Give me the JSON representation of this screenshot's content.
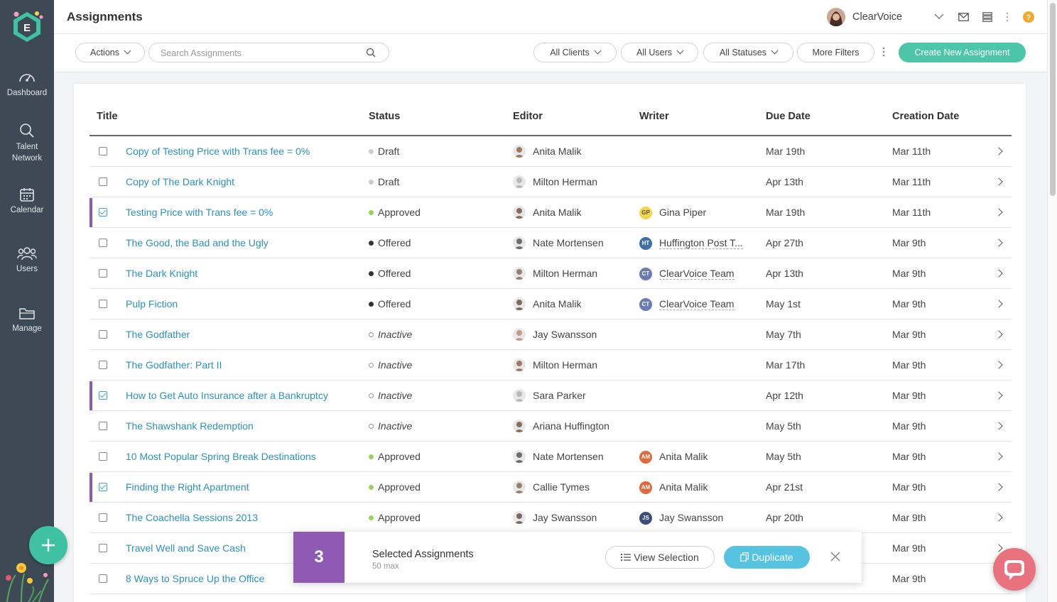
{
  "sidebar": {
    "nav": [
      {
        "label": "Dashboard",
        "icon": "speedometer-icon"
      },
      {
        "label": "Talent Network",
        "icon": "search-icon"
      },
      {
        "label": "Calendar",
        "icon": "calendar-icon"
      },
      {
        "label": "Users",
        "icon": "users-icon"
      },
      {
        "label": "Manage",
        "icon": "folder-icon"
      }
    ],
    "fab_icon": "plus-icon"
  },
  "header": {
    "title": "Assignments",
    "account_name": "ClearVoice"
  },
  "toolbar": {
    "actions_label": "Actions",
    "search_placeholder": "Search Assignments",
    "filters": [
      "All Clients",
      "All Users",
      "All Statuses"
    ],
    "more_filters_label": "More Filters",
    "create_label": "Create New Assignment"
  },
  "table": {
    "columns": [
      "Title",
      "Status",
      "Editor",
      "Writer",
      "Due Date",
      "Creation Date"
    ],
    "rows": [
      {
        "title": "Copy of Testing Price with Trans fee = 0%",
        "status": "Draft",
        "status_type": "draft",
        "editor": "Anita Malik",
        "writer": "",
        "writer_badge": "",
        "due": "Mar 19th",
        "created": "Mar 11th",
        "selected": false
      },
      {
        "title": "Copy of The Dark Knight",
        "status": "Draft",
        "status_type": "draft",
        "editor": "Milton Herman",
        "writer": "",
        "writer_badge": "",
        "due": "Apr 13th",
        "created": "Mar 11th",
        "selected": false
      },
      {
        "title": "Testing Price with Trans fee = 0%",
        "status": "Approved",
        "status_type": "approved",
        "editor": "Anita Malik",
        "writer": "Gina Piper",
        "writer_badge": "GP",
        "due": "Mar 19th",
        "created": "Mar 11th",
        "selected": true
      },
      {
        "title": "The Good, the Bad and the Ugly",
        "status": "Offered",
        "status_type": "offered",
        "editor": "Nate Mortensen",
        "writer": "Huffington Post T...",
        "writer_badge": "HT",
        "due": "Apr 27th",
        "created": "Mar 9th",
        "selected": false
      },
      {
        "title": "The Dark Knight",
        "status": "Offered",
        "status_type": "offered",
        "editor": "Milton Herman",
        "writer": "ClearVoice Team",
        "writer_badge": "CT",
        "due": "Apr 13th",
        "created": "Mar 9th",
        "selected": false
      },
      {
        "title": "Pulp Fiction",
        "status": "Offered",
        "status_type": "offered",
        "editor": "Anita Malik",
        "writer": "ClearVoice Team",
        "writer_badge": "CT",
        "due": "May 1st",
        "created": "Mar 9th",
        "selected": false
      },
      {
        "title": "The Godfather",
        "status": "Inactive",
        "status_type": "inactive",
        "editor": "Jay Swansson",
        "writer": "",
        "writer_badge": "",
        "due": "May 7th",
        "created": "Mar 9th",
        "selected": false
      },
      {
        "title": "The Godfather: Part II",
        "status": "Inactive",
        "status_type": "inactive",
        "editor": "Milton Herman",
        "writer": "",
        "writer_badge": "",
        "due": "Mar 17th",
        "created": "Mar 9th",
        "selected": false
      },
      {
        "title": "How to Get Auto Insurance after a Bankruptcy",
        "status": "Inactive",
        "status_type": "inactive",
        "editor": "Sara Parker",
        "writer": "",
        "writer_badge": "",
        "due": "Apr 12th",
        "created": "Mar 9th",
        "selected": true
      },
      {
        "title": "The Shawshank Redemption",
        "status": "Inactive",
        "status_type": "inactive",
        "editor": "Ariana Huffington",
        "writer": "",
        "writer_badge": "",
        "due": "May 5th",
        "created": "Mar 9th",
        "selected": false
      },
      {
        "title": "10 Most Popular Spring Break Destinations",
        "status": "Approved",
        "status_type": "approved",
        "editor": "Nate Mortensen",
        "writer": "Anita Malik",
        "writer_badge": "AM",
        "due": "May 5th",
        "created": "Mar 9th",
        "selected": false
      },
      {
        "title": "Finding the Right Apartment",
        "status": "Approved",
        "status_type": "approved",
        "editor": "Callie Tymes",
        "writer": "Anita Malik",
        "writer_badge": "AM",
        "due": "Apr 21st",
        "created": "Mar 9th",
        "selected": true
      },
      {
        "title": "The Coachella Sessions 2013",
        "status": "Approved",
        "status_type": "approved",
        "editor": "Jay Swansson",
        "writer": "Jay Swansson",
        "writer_badge": "JS",
        "due": "Apr 20th",
        "created": "Mar 9th",
        "selected": false
      },
      {
        "title": "Travel Well and Save Cash",
        "status": "",
        "status_type": "",
        "editor": "",
        "writer": "",
        "writer_badge": "",
        "due": "",
        "created": "Mar 9th",
        "selected": false
      },
      {
        "title": "8 Ways to Spruce Up the Office",
        "status": "",
        "status_type": "",
        "editor": "",
        "writer": "",
        "writer_badge": "",
        "due": "",
        "created": "Mar 9th",
        "selected": false
      }
    ]
  },
  "selection": {
    "count": "3",
    "title": "Selected Assignments",
    "subtitle": "50 max",
    "view_label": "View Selection",
    "duplicate_label": "Duplicate"
  },
  "colors": {
    "accent_green": "#4cc5a8",
    "link_blue": "#2a92b8",
    "selection_purple": "#8e5ab4",
    "duplicate_blue": "#56c4e0",
    "status_approved": "#9bd05a",
    "status_offered": "#333333",
    "status_draft": "#cccccc",
    "badge_GP": "#f2d54a",
    "badge_HT": "#3f6fa8",
    "badge_CT": "#6a7cb5",
    "badge_AM": "#e06a3b",
    "badge_JS": "#3b4d7a"
  }
}
